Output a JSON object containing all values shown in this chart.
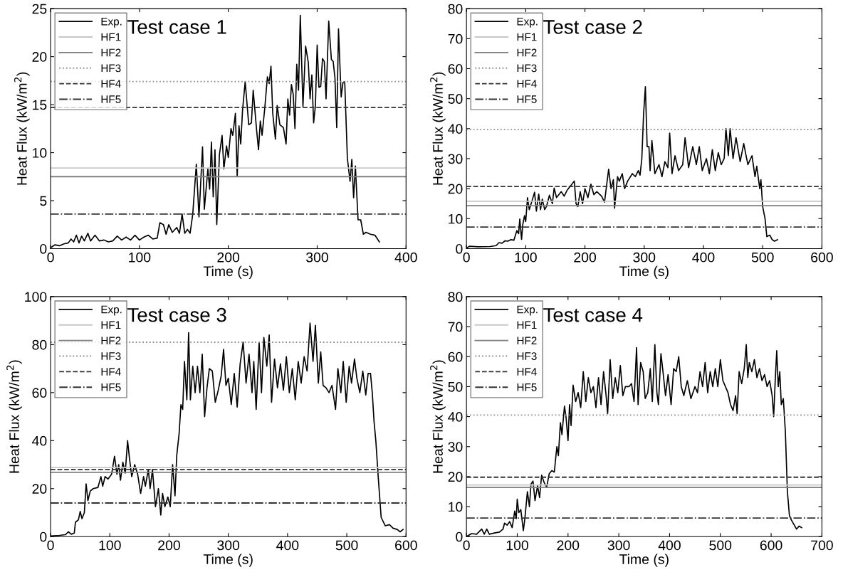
{
  "chart_data": [
    {
      "type": "line",
      "title": "Test case 1",
      "xlabel": "Time (s)",
      "ylabel": "Heat Flux (kW/m$^{2}$)",
      "xlim": [
        0,
        400
      ],
      "xticks": [
        0,
        100,
        200,
        300,
        400
      ],
      "ylim": [
        0,
        25
      ],
      "yticks": [
        0,
        5,
        10,
        15,
        20,
        25
      ],
      "legend": "top left",
      "grid": false,
      "series": [
        {
          "name": "Exp.",
          "color": "#000000",
          "line_style": "solid",
          "x": [
            0,
            5,
            10,
            15,
            20,
            23,
            26,
            29,
            32,
            35,
            38,
            42,
            45,
            50,
            55,
            60,
            65,
            70,
            75,
            80,
            85,
            90,
            95,
            100,
            105,
            110,
            115,
            120,
            123,
            127,
            130,
            133,
            137,
            142,
            145,
            148,
            151,
            154,
            157,
            160,
            164,
            167,
            171,
            173,
            177,
            179,
            181,
            183,
            185,
            187,
            190,
            193,
            195,
            198,
            200,
            203,
            205,
            208,
            210,
            212,
            214,
            216,
            219,
            223,
            226,
            228,
            232,
            234,
            236,
            238,
            241,
            244,
            246,
            248,
            250,
            253,
            255,
            258,
            262,
            265,
            267,
            269,
            271,
            273,
            275,
            277,
            279,
            281,
            284,
            287,
            290,
            292,
            294,
            296,
            298,
            300,
            302,
            304,
            306,
            308,
            310,
            313,
            316,
            318,
            320,
            322,
            324,
            327,
            329,
            331,
            334,
            337,
            339,
            341,
            343,
            346,
            349,
            352,
            355,
            360,
            365,
            370
          ],
          "values": [
            0.1,
            0.4,
            0.3,
            0.5,
            0.6,
            1.0,
            0.7,
            1.4,
            0.6,
            1.3,
            0.8,
            1.6,
            0.8,
            1.4,
            0.8,
            0.9,
            0.7,
            0.8,
            1.3,
            0.9,
            1.2,
            0.9,
            1.4,
            0.9,
            1.2,
            1.4,
            1.0,
            1.1,
            2.7,
            2.5,
            1.5,
            2.5,
            1.7,
            2.2,
            1.6,
            3.6,
            1.6,
            2.0,
            1.6,
            3.6,
            8.8,
            3.3,
            10.6,
            4.1,
            8.3,
            6.2,
            11.1,
            5.4,
            10.3,
            2.5,
            9.8,
            11.8,
            8.3,
            10.7,
            9.5,
            12.5,
            11.8,
            14.1,
            7.5,
            12.8,
            10.9,
            14.4,
            17.4,
            12.9,
            13.1,
            16.5,
            12.2,
            10.3,
            13.3,
            11.8,
            14.6,
            17.9,
            17.2,
            19.0,
            14.1,
            11.4,
            14.9,
            12.9,
            12.6,
            10.9,
            15.6,
            13.9,
            17.1,
            16.1,
            12.5,
            19.2,
            16.5,
            24.3,
            14.8,
            21.1,
            19.4,
            15.6,
            18.1,
            13.1,
            14.9,
            21.2,
            16.8,
            16.9,
            19.8,
            19.5,
            15.6,
            23.7,
            19.7,
            19.5,
            17.8,
            12.6,
            22.9,
            15.8,
            17.3,
            17.4,
            9.4,
            7.0,
            9.3,
            5.3,
            8.6,
            3.0,
            3.0,
            1.5,
            1.7,
            1.5,
            1.4,
            0.7
          ]
        },
        {
          "name": "HF1",
          "color": "#c8c8c8",
          "line_style": "solid",
          "x": [
            0,
            400
          ],
          "values": [
            8.4,
            8.4
          ]
        },
        {
          "name": "HF2",
          "color": "#808080",
          "line_style": "solid",
          "x": [
            0,
            400
          ],
          "values": [
            7.5,
            7.5
          ]
        },
        {
          "name": "HF3",
          "color": "#909090",
          "line_style": "dotted",
          "x": [
            0,
            400
          ],
          "values": [
            17.4,
            17.4
          ]
        },
        {
          "name": "HF4",
          "color": "#333333",
          "line_style": "dashed",
          "x": [
            0,
            400
          ],
          "values": [
            14.7,
            14.7
          ]
        },
        {
          "name": "HF5",
          "color": "#333333",
          "line_style": "dashdot",
          "x": [
            0,
            400
          ],
          "values": [
            3.6,
            3.6
          ]
        }
      ]
    },
    {
      "type": "line",
      "title": "Test case 2",
      "xlabel": "Time (s)",
      "ylabel": "Heat Flux (kW/m$^{2}$)",
      "xlim": [
        0,
        600
      ],
      "xticks": [
        0,
        100,
        200,
        300,
        400,
        500,
        600
      ],
      "ylim": [
        0,
        80
      ],
      "yticks": [
        0,
        10,
        20,
        30,
        40,
        50,
        60,
        70,
        80
      ],
      "legend": "top left",
      "grid": false,
      "series": [
        {
          "name": "Exp.",
          "color": "#000000",
          "line_style": "solid",
          "x": [
            0,
            5,
            20,
            40,
            50,
            55,
            60,
            65,
            70,
            75,
            80,
            85,
            88,
            90,
            93,
            95,
            98,
            100,
            103,
            106,
            110,
            115,
            118,
            122,
            125,
            128,
            132,
            135,
            140,
            145,
            148,
            152,
            160,
            165,
            170,
            176,
            182,
            185,
            188,
            192,
            196,
            200,
            205,
            210,
            215,
            220,
            228,
            233,
            240,
            244,
            248,
            250,
            255,
            258,
            263,
            267,
            272,
            280,
            285,
            290,
            293,
            296,
            299,
            302,
            305,
            308,
            310,
            313,
            318,
            325,
            330,
            335,
            340,
            343,
            347,
            352,
            358,
            365,
            369,
            375,
            382,
            388,
            393,
            398,
            405,
            410,
            415,
            420,
            425,
            430,
            435,
            438,
            442,
            445,
            450,
            455,
            462,
            468,
            475,
            482,
            487,
            490,
            495,
            497,
            500,
            504,
            507,
            512,
            516,
            520,
            525
          ],
          "values": [
            0.2,
            0.8,
            0.6,
            0.7,
            1.0,
            2.0,
            1.8,
            2.6,
            2.5,
            3.0,
            2.8,
            6.0,
            5.0,
            9.9,
            3.1,
            8.0,
            11.0,
            9.0,
            17.0,
            13.0,
            15.5,
            18.8,
            12.5,
            18.2,
            13.0,
            16.5,
            13.0,
            14.0,
            17.8,
            15.0,
            20.2,
            17.0,
            19.0,
            17.5,
            19.5,
            21.0,
            22.5,
            15.0,
            14.0,
            19.0,
            15.0,
            20.0,
            17.0,
            21.5,
            18.0,
            19.0,
            17.5,
            15.5,
            26.5,
            20.0,
            23.0,
            13.5,
            24.0,
            22.5,
            25.0,
            20.0,
            22.5,
            25.0,
            24.0,
            26.0,
            24.5,
            30.0,
            45.0,
            54.0,
            34.0,
            34.0,
            26.0,
            36.0,
            25.0,
            28.0,
            24.0,
            29.0,
            27.0,
            38.5,
            25.0,
            31.0,
            26.0,
            28.0,
            37.0,
            27.0,
            34.0,
            28.0,
            34.0,
            26.0,
            30.0,
            25.0,
            33.0,
            26.0,
            32.0,
            28.0,
            30.0,
            40.0,
            31.0,
            40.0,
            30.0,
            37.0,
            29.0,
            35.0,
            28.0,
            31.0,
            24.0,
            27.5,
            20.0,
            23.0,
            14.0,
            10.0,
            4.0,
            4.5,
            3.0,
            2.5,
            3.0
          ]
        },
        {
          "name": "HF1",
          "color": "#c8c8c8",
          "line_style": "solid",
          "x": [
            0,
            600
          ],
          "values": [
            15.8,
            15.8
          ]
        },
        {
          "name": "HF2",
          "color": "#808080",
          "line_style": "solid",
          "x": [
            0,
            600
          ],
          "values": [
            14.3,
            14.3
          ]
        },
        {
          "name": "HF3",
          "color": "#909090",
          "line_style": "dotted",
          "x": [
            0,
            600
          ],
          "values": [
            39.7,
            39.7
          ]
        },
        {
          "name": "HF4",
          "color": "#333333",
          "line_style": "dashed",
          "x": [
            0,
            600
          ],
          "values": [
            20.7,
            20.7
          ]
        },
        {
          "name": "HF5",
          "color": "#333333",
          "line_style": "dashdot",
          "x": [
            0,
            600
          ],
          "values": [
            7.2,
            7.2
          ]
        }
      ]
    },
    {
      "type": "line",
      "title": "Test case 3",
      "xlabel": "Time (s)",
      "ylabel": "Heat Flux (kW/m$^{2}$)",
      "xlim": [
        0,
        600
      ],
      "xticks": [
        0,
        100,
        200,
        300,
        400,
        500,
        600
      ],
      "ylim": [
        0,
        100
      ],
      "yticks": [
        0,
        20,
        40,
        60,
        80,
        100
      ],
      "legend": "top left",
      "grid": false,
      "series": [
        {
          "name": "Exp.",
          "color": "#000000",
          "line_style": "solid",
          "x": [
            0,
            15,
            25,
            30,
            35,
            40,
            42,
            47,
            50,
            53,
            57,
            60,
            63,
            67,
            72,
            80,
            85,
            88,
            92,
            97,
            103,
            108,
            112,
            115,
            118,
            122,
            126,
            130,
            133,
            137,
            142,
            147,
            152,
            157,
            160,
            165,
            168,
            172,
            177,
            182,
            186,
            189,
            193,
            198,
            202,
            206,
            210,
            213,
            217,
            220,
            223,
            226,
            230,
            233,
            236,
            240,
            244,
            248,
            252,
            256,
            260,
            264,
            268,
            273,
            278,
            283,
            288,
            292,
            296,
            300,
            305,
            310,
            315,
            320,
            325,
            330,
            335,
            340,
            343,
            347,
            352,
            356,
            360,
            365,
            369,
            373,
            378,
            383,
            388,
            393,
            398,
            403,
            408,
            413,
            418,
            423,
            428,
            433,
            438,
            443,
            447,
            452,
            456,
            460,
            465,
            470,
            475,
            481,
            485,
            490,
            494,
            499,
            504,
            508,
            513,
            517,
            522,
            527,
            532,
            536,
            540,
            543,
            546,
            549,
            553,
            558,
            565,
            572,
            578,
            585,
            590,
            595
          ],
          "values": [
            0.3,
            0.5,
            0.8,
            2.0,
            1.0,
            1.5,
            6.0,
            7.0,
            10.5,
            7.5,
            10.0,
            22.0,
            15.0,
            19.0,
            20.0,
            20.5,
            25.0,
            21.0,
            25.0,
            24.0,
            26.0,
            33.5,
            26.0,
            30.0,
            23.5,
            31.0,
            26.5,
            40.0,
            33.0,
            25.0,
            30.0,
            26.0,
            18.0,
            25.0,
            21.0,
            28.0,
            20.0,
            28.0,
            12.5,
            20.0,
            9.0,
            18.0,
            12.5,
            16.5,
            12.5,
            30.0,
            17.0,
            34.0,
            43.0,
            55.0,
            53.0,
            73.0,
            57.0,
            85.0,
            57.0,
            71.0,
            60.0,
            71.0,
            60.0,
            76.0,
            50.0,
            62.0,
            70.0,
            69.0,
            56.0,
            61.0,
            67.0,
            78.0,
            63.0,
            66.0,
            55.0,
            68.0,
            54.0,
            72.0,
            81.0,
            64.0,
            76.0,
            60.0,
            73.0,
            53.0,
            81.0,
            60.0,
            83.0,
            71.0,
            84.0,
            56.0,
            74.0,
            62.0,
            72.0,
            61.0,
            75.0,
            60.0,
            70.0,
            57.0,
            73.0,
            64.0,
            75.0,
            69.0,
            89.0,
            73.0,
            88.0,
            64.0,
            77.0,
            63.0,
            62.0,
            60.0,
            63.0,
            53.0,
            70.0,
            60.0,
            73.0,
            56.0,
            71.0,
            64.0,
            74.0,
            66.0,
            60.0,
            69.0,
            59.0,
            68.0,
            68.0,
            60.0,
            48.0,
            40.0,
            25.0,
            8.0,
            4.5,
            5.0,
            3.5,
            3.0,
            2.0,
            3.0
          ]
        },
        {
          "name": "HF1",
          "color": "#c8c8c8",
          "line_style": "solid",
          "x": [
            0,
            600
          ],
          "values": [
            28.8,
            28.8
          ]
        },
        {
          "name": "HF2",
          "color": "#808080",
          "line_style": "solid",
          "x": [
            0,
            600
          ],
          "values": [
            26.8,
            26.8
          ]
        },
        {
          "name": "HF3",
          "color": "#909090",
          "line_style": "dotted",
          "x": [
            0,
            600
          ],
          "values": [
            81.0,
            81.0
          ]
        },
        {
          "name": "HF4",
          "color": "#333333",
          "line_style": "dashed",
          "x": [
            0,
            600
          ],
          "values": [
            28.0,
            28.0
          ]
        },
        {
          "name": "HF5",
          "color": "#333333",
          "line_style": "dashdot",
          "x": [
            0,
            600
          ],
          "values": [
            14.0,
            14.0
          ]
        }
      ]
    },
    {
      "type": "line",
      "title": "Test case 4",
      "xlabel": "Time (s)",
      "ylabel": "Heat Flux (kW/m$^{2}$)",
      "xlim": [
        0,
        700
      ],
      "xticks": [
        0,
        100,
        200,
        300,
        400,
        500,
        600,
        700
      ],
      "ylim": [
        0,
        80
      ],
      "yticks": [
        0,
        10,
        20,
        30,
        40,
        50,
        60,
        70,
        80
      ],
      "legend": "top left",
      "grid": false,
      "series": [
        {
          "name": "Exp.",
          "color": "#000000",
          "line_style": "solid",
          "x": [
            0,
            10,
            20,
            30,
            35,
            40,
            45,
            55,
            65,
            72,
            75,
            80,
            85,
            90,
            95,
            98,
            100,
            103,
            107,
            112,
            115,
            120,
            124,
            127,
            131,
            135,
            140,
            144,
            148,
            153,
            158,
            163,
            168,
            173,
            178,
            181,
            185,
            188,
            193,
            196,
            200,
            203,
            206,
            210,
            215,
            220,
            225,
            230,
            235,
            240,
            245,
            250,
            255,
            260,
            265,
            270,
            275,
            278,
            283,
            288,
            293,
            298,
            303,
            308,
            313,
            320,
            325,
            330,
            335,
            338,
            343,
            348,
            352,
            357,
            362,
            366,
            371,
            375,
            378,
            383,
            387,
            392,
            397,
            403,
            408,
            413,
            418,
            423,
            428,
            435,
            442,
            450,
            455,
            460,
            465,
            470,
            475,
            480,
            485,
            490,
            495,
            500,
            505,
            510,
            515,
            520,
            525,
            530,
            533,
            537,
            542,
            547,
            551,
            554,
            557,
            562,
            567,
            572,
            577,
            582,
            587,
            592,
            597,
            602,
            605,
            608,
            611,
            614,
            617,
            620,
            624,
            628,
            632,
            636,
            640,
            645,
            650,
            655,
            660
          ],
          "values": [
            0,
            1.0,
            0.8,
            2.5,
            0.8,
            2.5,
            0.8,
            1.2,
            1.5,
            2.5,
            4.5,
            3.8,
            5.0,
            3.0,
            8.5,
            6.0,
            12.5,
            8.0,
            9.0,
            2.0,
            6.0,
            15.0,
            10.0,
            17.5,
            18.5,
            12.0,
            17.0,
            13.0,
            20.5,
            18.0,
            16.5,
            21.0,
            22.0,
            21.5,
            30.0,
            27.0,
            38.0,
            34.0,
            43.5,
            40.0,
            32.0,
            44.0,
            37.0,
            50.5,
            45.0,
            48.0,
            43.0,
            55.0,
            45.0,
            53.0,
            48.0,
            50.0,
            43.0,
            53.0,
            44.0,
            55.0,
            47.0,
            41.0,
            59.0,
            46.0,
            53.0,
            48.0,
            57.0,
            47.0,
            50.0,
            50.0,
            51.0,
            45.0,
            63.0,
            44.0,
            58.0,
            55.0,
            46.0,
            48.0,
            56.0,
            45.0,
            64.0,
            48.0,
            44.0,
            61.0,
            55.0,
            47.0,
            54.0,
            44.0,
            56.0,
            55.0,
            60.0,
            50.0,
            47.0,
            52.0,
            46.0,
            50.0,
            48.0,
            55.0,
            50.0,
            58.0,
            48.0,
            55.0,
            50.0,
            56.0,
            50.0,
            59.0,
            52.0,
            50.0,
            48.0,
            44.0,
            42.0,
            47.0,
            41.0,
            55.0,
            51.0,
            56.0,
            64.0,
            53.0,
            58.0,
            55.0,
            59.0,
            53.0,
            56.0,
            52.0,
            54.0,
            50.0,
            52.0,
            47.0,
            40.0,
            52.0,
            62.0,
            50.0,
            55.0,
            44.0,
            46.0,
            35.0,
            15.0,
            7.0,
            5.5,
            4.0,
            2.5,
            3.5,
            3.0
          ]
        },
        {
          "name": "HF1",
          "color": "#c8c8c8",
          "line_style": "solid",
          "x": [
            0,
            700
          ],
          "values": [
            17.2,
            17.2
          ]
        },
        {
          "name": "HF2",
          "color": "#808080",
          "line_style": "solid",
          "x": [
            0,
            700
          ],
          "values": [
            16.4,
            16.4
          ]
        },
        {
          "name": "HF3",
          "color": "#909090",
          "line_style": "dotted",
          "x": [
            0,
            700
          ],
          "values": [
            40.5,
            40.5
          ]
        },
        {
          "name": "HF4",
          "color": "#333333",
          "line_style": "dashed",
          "x": [
            0,
            700
          ],
          "values": [
            19.8,
            19.8
          ]
        },
        {
          "name": "HF5",
          "color": "#333333",
          "line_style": "dashdot",
          "x": [
            0,
            700
          ],
          "values": [
            6.2,
            6.2
          ]
        }
      ]
    }
  ]
}
